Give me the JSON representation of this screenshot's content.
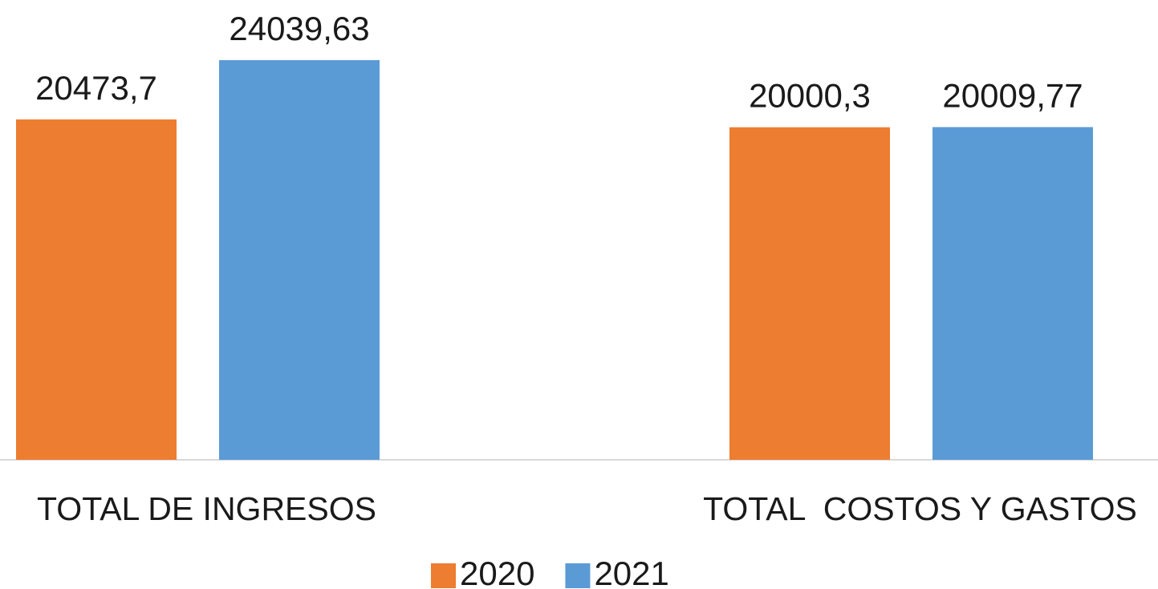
{
  "chart_data": {
    "type": "bar",
    "categories": [
      "TOTAL DE INGRESOS",
      "TOTAL  COSTOS Y GASTOS"
    ],
    "series": [
      {
        "name": "2020",
        "color": "#ed7d31",
        "values": [
          20473.7,
          20000.3
        ],
        "value_labels": [
          "20473,7",
          "20000,3"
        ]
      },
      {
        "name": "2021",
        "color": "#5b9bd5",
        "values": [
          24039.63,
          20009.77
        ],
        "value_labels": [
          "24039,63",
          "20009,77"
        ]
      }
    ],
    "ylim": [
      0,
      25000
    ],
    "grid": false,
    "legend": "bottom"
  }
}
